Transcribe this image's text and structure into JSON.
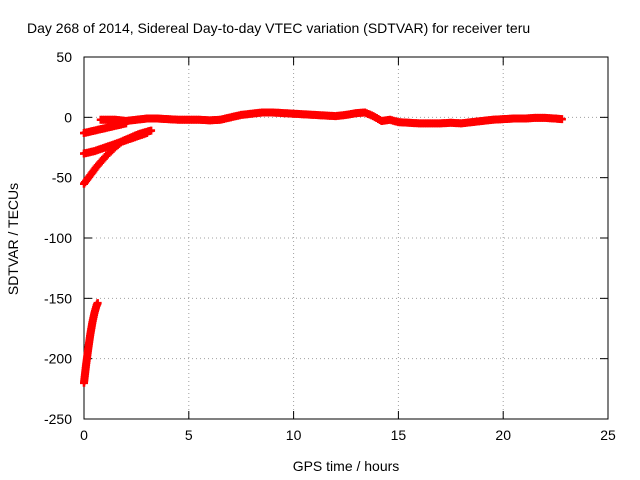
{
  "chart_data": {
    "type": "scatter",
    "title": "Day 268 of 2014, Sidereal Day-to-day VTEC variation (SDTVAR) for receiver teru",
    "xlabel": "GPS time / hours",
    "ylabel": "SDTVAR / TECUs",
    "xlim": [
      0,
      25
    ],
    "ylim": [
      -250,
      50
    ],
    "xticks": [
      0,
      5,
      10,
      15,
      20,
      25
    ],
    "yticks": [
      -250,
      -200,
      -150,
      -100,
      -50,
      0,
      50
    ],
    "grid": true,
    "marker": "plus",
    "series": [
      {
        "color": "#ff0000",
        "segments": [
          [
            [
              0.0,
              -220
            ],
            [
              0.1,
              -205
            ],
            [
              0.2,
              -192
            ],
            [
              0.3,
              -180
            ],
            [
              0.4,
              -170
            ],
            [
              0.5,
              -162
            ],
            [
              0.6,
              -156
            ],
            [
              0.65,
              -154
            ]
          ],
          [
            [
              0.0,
              -55
            ],
            [
              0.3,
              -48
            ],
            [
              0.6,
              -41
            ],
            [
              1.0,
              -33
            ],
            [
              1.4,
              -26
            ],
            [
              1.8,
              -20
            ],
            [
              2.2,
              -17
            ],
            [
              2.6,
              -14
            ],
            [
              3.0,
              -12
            ],
            [
              3.2,
              -11
            ]
          ],
          [
            [
              0.0,
              -30
            ],
            [
              0.5,
              -28
            ],
            [
              1.0,
              -25
            ],
            [
              1.5,
              -22
            ],
            [
              2.0,
              -19
            ],
            [
              2.5,
              -16
            ],
            [
              3.0,
              -13
            ]
          ],
          [
            [
              0.0,
              -13
            ],
            [
              0.5,
              -11
            ],
            [
              1.0,
              -9
            ],
            [
              1.5,
              -7
            ],
            [
              2.0,
              -5
            ]
          ],
          [
            [
              0.8,
              -2
            ],
            [
              1.5,
              -2
            ],
            [
              2.0,
              -3
            ],
            [
              2.5,
              -2
            ],
            [
              3.0,
              -1
            ],
            [
              3.5,
              -1
            ],
            [
              4.0,
              -1.5
            ],
            [
              4.5,
              -2
            ],
            [
              5.0,
              -2
            ],
            [
              5.5,
              -2
            ],
            [
              6.0,
              -2.5
            ],
            [
              6.5,
              -2
            ],
            [
              7.0,
              0
            ],
            [
              7.5,
              2
            ],
            [
              8.0,
              3
            ],
            [
              8.5,
              4
            ],
            [
              9.0,
              4
            ],
            [
              9.5,
              3.5
            ],
            [
              10.0,
              3
            ],
            [
              10.5,
              2.5
            ],
            [
              11.0,
              2
            ],
            [
              11.5,
              1.5
            ],
            [
              12.0,
              1
            ],
            [
              12.5,
              2
            ],
            [
              13.0,
              3.5
            ],
            [
              13.4,
              4
            ],
            [
              13.8,
              1
            ],
            [
              14.2,
              -3
            ],
            [
              14.6,
              -2
            ],
            [
              15.0,
              -4
            ],
            [
              15.5,
              -4.5
            ],
            [
              16.0,
              -5
            ],
            [
              16.5,
              -5
            ],
            [
              17.0,
              -5
            ],
            [
              17.5,
              -4.5
            ],
            [
              18.0,
              -5
            ],
            [
              18.5,
              -4
            ],
            [
              19.0,
              -3
            ],
            [
              19.5,
              -2
            ],
            [
              20.0,
              -1.5
            ],
            [
              20.5,
              -1
            ],
            [
              21.0,
              -1
            ],
            [
              21.5,
              -0.5
            ],
            [
              22.0,
              -0.5
            ],
            [
              22.5,
              -1
            ],
            [
              22.8,
              -1.5
            ]
          ]
        ]
      }
    ]
  }
}
